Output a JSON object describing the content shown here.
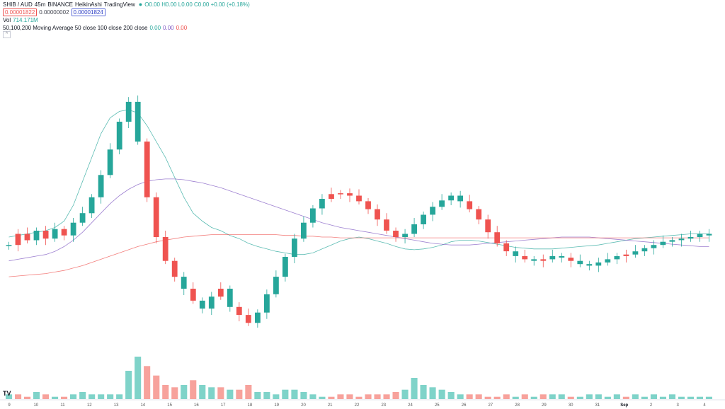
{
  "legend": {
    "symbol": "SHIB / AUD",
    "interval": "45",
    "exchange": "BINANCE",
    "chart_style": "HeikinAshi",
    "source": "TradingView",
    "ohlc": "O0.00 H0.00 L0.00 C0.00 +0.00 (+0.18%)",
    "bid": "0.00001822",
    "spread": "0.00000002",
    "ask": "0.00001824",
    "vol_label": "Vol",
    "vol_value": "714.171M",
    "ma_title": "50,100,200 Moving Average 50 close 100 close 200 close",
    "ma50_value": "0.00",
    "ma100_value": "0.00",
    "ma200_value": "0.00",
    "collapse_glyph": "^"
  },
  "colors": {
    "up": "#26a69a",
    "down": "#ef5350",
    "up_volume": "#7fd3c9",
    "down_volume": "#f7a29c",
    "ma50": "#26a69a",
    "ma100": "#7e57c2",
    "ma200": "#ef5350"
  },
  "logo_text": "TV",
  "chart_data": {
    "type": "candlestick",
    "style": "HeikinAshi",
    "x_ticks": [
      "9",
      "10",
      "11",
      "12",
      "13",
      "14",
      "15",
      "16",
      "17",
      "18",
      "19",
      "20",
      "21",
      "22",
      "23",
      "24",
      "25",
      "26",
      "27",
      "28",
      "29",
      "30",
      "31",
      "Sep",
      "2",
      "3",
      "4"
    ],
    "x_ticks_bold": [
      "Sep"
    ],
    "y_axis": "none",
    "grid": false,
    "price_level": [
      460,
      474,
      466,
      478,
      468,
      480,
      472,
      488,
      500,
      520,
      548,
      580,
      615,
      640,
      590,
      520,
      470,
      440,
      420,
      405,
      390,
      380,
      395,
      405,
      382,
      372,
      362,
      375,
      398,
      420,
      445,
      468,
      488,
      506,
      518,
      524,
      525,
      522,
      515,
      505,
      492,
      478,
      470,
      474,
      486,
      498,
      508,
      516,
      522,
      515,
      505,
      492,
      476,
      462,
      452,
      446,
      442,
      440,
      442,
      446,
      444,
      440,
      436,
      434,
      438,
      442,
      446,
      448,
      452,
      456,
      460,
      464,
      466,
      468,
      470,
      474,
      472
    ],
    "candles_up": [
      0,
      3,
      5,
      7,
      8,
      9,
      10,
      11,
      12,
      13,
      14,
      19,
      21,
      22,
      24,
      27,
      28,
      29,
      30,
      31,
      32,
      33,
      34,
      43,
      44,
      45,
      46,
      47,
      48,
      49,
      55,
      57,
      59,
      60,
      62,
      63,
      64,
      65,
      66,
      68,
      69,
      70,
      71,
      72,
      73,
      74,
      75,
      76
    ],
    "volume": [
      2,
      2,
      1,
      3,
      2,
      1,
      1,
      2,
      3,
      2,
      2,
      2,
      2,
      12,
      18,
      14,
      10,
      6,
      5,
      6,
      8,
      6,
      5,
      5,
      4,
      4,
      6,
      3,
      3,
      2,
      4,
      4,
      3,
      2,
      1,
      1,
      2,
      2,
      1,
      2,
      2,
      2,
      3,
      4,
      9,
      6,
      5,
      4,
      3,
      2,
      2,
      2,
      1,
      1,
      2,
      1,
      2,
      1,
      2,
      2,
      2,
      1,
      1,
      2,
      2,
      1,
      2,
      1,
      2,
      1,
      2,
      1,
      2,
      1,
      1,
      1,
      1
    ],
    "ma50": [
      470,
      472,
      474,
      476,
      478,
      482,
      490,
      510,
      540,
      570,
      600,
      620,
      628,
      630,
      626,
      610,
      590,
      570,
      545,
      520,
      500,
      490,
      482,
      478,
      472,
      468,
      462,
      458,
      455,
      452,
      450,
      448,
      448,
      450,
      455,
      460,
      465,
      468,
      470,
      468,
      465,
      462,
      458,
      455,
      454,
      455,
      457,
      460,
      464,
      466,
      466,
      465,
      463,
      461,
      459,
      457,
      456,
      455,
      455,
      455,
      456,
      457,
      458,
      459,
      460,
      462,
      464,
      466,
      468,
      469,
      470,
      471,
      472,
      473,
      474,
      474,
      474
    ],
    "ma100": [
      440,
      442,
      444,
      446,
      448,
      452,
      458,
      466,
      476,
      488,
      500,
      512,
      522,
      530,
      536,
      540,
      542,
      543,
      543,
      542,
      540,
      538,
      535,
      532,
      528,
      524,
      520,
      516,
      512,
      508,
      504,
      500,
      496,
      492,
      488,
      485,
      482,
      480,
      478,
      476,
      474,
      472,
      470,
      468,
      466,
      464,
      462,
      461,
      460,
      460,
      460,
      461,
      462,
      463,
      464,
      465,
      466,
      467,
      468,
      469,
      470,
      470,
      470,
      470,
      469,
      468,
      467,
      466,
      465,
      464,
      463,
      462,
      461,
      460,
      459,
      458,
      458
    ],
    "ma200": [
      420,
      421,
      422,
      423,
      424,
      426,
      428,
      431,
      434,
      438,
      442,
      446,
      450,
      454,
      458,
      461,
      464,
      466,
      468,
      470,
      471,
      472,
      473,
      473,
      473,
      473,
      473,
      473,
      473,
      473,
      472,
      472,
      471,
      471,
      470,
      470,
      469,
      469,
      469,
      469,
      469,
      469,
      469,
      469,
      469,
      469,
      469,
      469,
      469,
      469,
      469,
      469,
      469,
      469,
      469,
      469,
      469,
      469,
      469,
      469,
      469,
      469,
      469,
      469,
      469,
      469,
      469,
      469,
      469,
      469,
      469,
      469,
      469,
      469,
      469,
      469,
      469
    ]
  }
}
